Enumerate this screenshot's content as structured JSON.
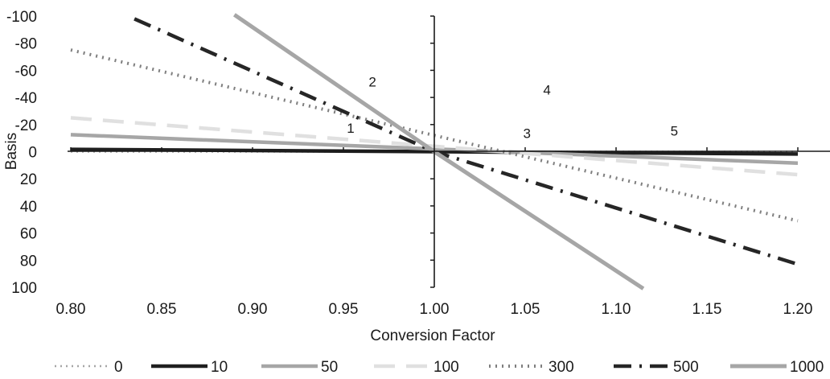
{
  "chart_data": {
    "type": "line",
    "xlabel": "Conversion Factor",
    "ylabel": "Basis",
    "xlim": [
      0.8,
      1.2
    ],
    "ylim": [
      100,
      -100
    ],
    "y_axis_reversed": true,
    "x_ticks": [
      0.8,
      0.85,
      0.9,
      0.95,
      1.0,
      1.05,
      1.1,
      1.15,
      1.2
    ],
    "x_tick_labels": [
      "0.80",
      "0.85",
      "0.90",
      "0.95",
      "1.00",
      "1.05",
      "1.10",
      "1.15",
      "1.20"
    ],
    "y_ticks": [
      -100,
      -80,
      -60,
      -40,
      -20,
      0,
      20,
      40,
      60,
      80,
      100
    ],
    "y_tick_labels": [
      "-100",
      "-80",
      "-60",
      "-40",
      "-20",
      "0",
      "20",
      "40",
      "60",
      "80",
      "100"
    ],
    "grid": false,
    "legend_position": "bottom",
    "annotations": [
      {
        "text": "1",
        "x": 0.954,
        "y": -14
      },
      {
        "text": "2",
        "x": 0.966,
        "y": -48
      },
      {
        "text": "3",
        "x": 1.051,
        "y": -10
      },
      {
        "text": "4",
        "x": 1.062,
        "y": -42
      },
      {
        "text": "5",
        "x": 1.132,
        "y": -12
      }
    ],
    "series": [
      {
        "name": "0",
        "color": "#a6a6a6",
        "dash": "2 5",
        "width": 2.5,
        "x": [
          0.8,
          1.2
        ],
        "y": [
          0.0,
          0.0
        ]
      },
      {
        "name": "10",
        "color": "#1f1f1f",
        "dash": "",
        "width": 4.5,
        "x": [
          0.8,
          1.2
        ],
        "y": [
          -1.7,
          1.7
        ]
      },
      {
        "name": "50",
        "color": "#a6a6a6",
        "dash": "",
        "width": 4.5,
        "x": [
          0.8,
          1.2
        ],
        "y": [
          -12.5,
          8.5
        ]
      },
      {
        "name": "100",
        "color": "#e0e0e0",
        "dash": "26 14",
        "width": 4.5,
        "x": [
          0.8,
          1.2
        ],
        "y": [
          -25,
          17
        ]
      },
      {
        "name": "300",
        "color": "#7f7f7f",
        "dash": "2 6",
        "width": 4,
        "x": [
          0.8,
          1.2
        ],
        "y": [
          -75,
          51
        ]
      },
      {
        "name": "500",
        "color": "#262626",
        "dash": "22 10 3 10",
        "width": 4.5,
        "x": [
          0.835,
          1.0,
          1.2
        ],
        "y": [
          -98,
          0,
          83
        ]
      },
      {
        "name": "1000",
        "color": "#a6a6a6",
        "dash": "",
        "width": 5,
        "x": [
          0.89,
          1.0,
          1.115
        ],
        "y": [
          -101,
          0,
          101
        ]
      }
    ]
  }
}
